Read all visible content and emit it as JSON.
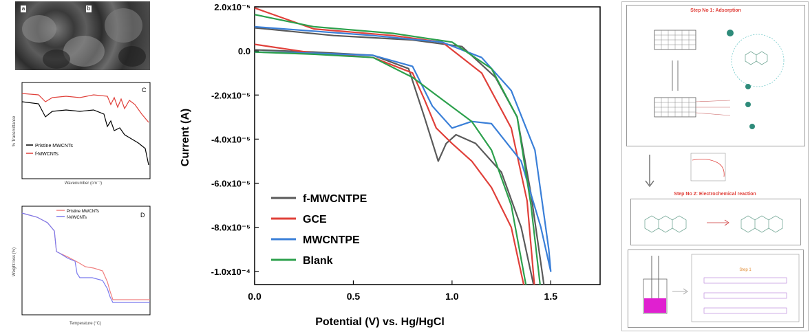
{
  "chart_data": [
    {
      "type": "line",
      "panel": "main",
      "xlabel": "Potential (V) vs. Hg/HgCl",
      "ylabel": "Current (A)",
      "xlim": [
        0.0,
        1.75
      ],
      "ylim": [
        -0.000106,
        2e-05
      ],
      "x_ticks": [
        "0.0",
        "0.5",
        "1.0",
        "1.5"
      ],
      "x_tick_values": [
        0.0,
        0.5,
        1.0,
        1.5
      ],
      "y_ticks": [
        "2.0x10⁻⁵",
        "0.0",
        "-2.0x10⁻⁵",
        "-4.0x10⁻⁵",
        "-6.0x10⁻⁵",
        "-8.0x10⁻⁵",
        "-1.0x10⁻⁴"
      ],
      "y_tick_values": [
        2e-05,
        0.0,
        -2e-05,
        -4e-05,
        -6e-05,
        -8e-05,
        -0.0001
      ],
      "legend_placement": "bottom-left",
      "series": [
        {
          "name": "f-MWCNTPE",
          "color": "#5a5a5a",
          "forward": [
            [
              0.0,
              5e-07
            ],
            [
              0.3,
              -5e-07
            ],
            [
              0.6,
              -2e-06
            ],
            [
              0.78,
              -8e-06
            ],
            [
              0.86,
              -3e-05
            ],
            [
              0.93,
              -5e-05
            ],
            [
              0.97,
              -4.2e-05
            ],
            [
              1.02,
              -3.8e-05
            ],
            [
              1.12,
              -4.2e-05
            ],
            [
              1.25,
              -5.5e-05
            ],
            [
              1.35,
              -8e-05
            ],
            [
              1.42,
              -0.000109
            ]
          ],
          "reverse": [
            [
              1.47,
              -0.000109
            ],
            [
              1.4,
              -6.5e-05
            ],
            [
              1.33,
              -3e-05
            ],
            [
              1.22,
              -1.2e-05
            ],
            [
              1.05,
              2e-06
            ],
            [
              0.8,
              5e-06
            ],
            [
              0.4,
              7e-06
            ],
            [
              0.0,
              1.05e-05
            ]
          ]
        },
        {
          "name": "GCE",
          "color": "#e0403a",
          "forward": [
            [
              0.0,
              3e-06
            ],
            [
              0.3,
              -1e-06
            ],
            [
              0.6,
              -3e-06
            ],
            [
              0.8,
              -1e-05
            ],
            [
              0.86,
              -2.2e-05
            ],
            [
              0.92,
              -3.5e-05
            ],
            [
              1.0,
              -4.2e-05
            ],
            [
              1.1,
              -5e-05
            ],
            [
              1.2,
              -6.2e-05
            ],
            [
              1.3,
              -8e-05
            ],
            [
              1.37,
              -0.000109
            ]
          ],
          "reverse": [
            [
              1.42,
              -0.000109
            ],
            [
              1.38,
              -6.8e-05
            ],
            [
              1.3,
              -3.5e-05
            ],
            [
              1.15,
              -1e-05
            ],
            [
              0.95,
              4e-06
            ],
            [
              0.7,
              7e-06
            ],
            [
              0.3,
              1e-05
            ],
            [
              0.0,
              1.95e-05
            ]
          ]
        },
        {
          "name": "MWCNTPE",
          "color": "#3a7fd8",
          "forward": [
            [
              0.0,
              -5e-07
            ],
            [
              0.3,
              -1e-06
            ],
            [
              0.6,
              -2e-06
            ],
            [
              0.8,
              -7e-06
            ],
            [
              0.9,
              -2.5e-05
            ],
            [
              1.0,
              -3.5e-05
            ],
            [
              1.1,
              -3.2e-05
            ],
            [
              1.2,
              -3.3e-05
            ],
            [
              1.35,
              -5e-05
            ],
            [
              1.45,
              -8e-05
            ],
            [
              1.5,
              -0.0001
            ]
          ],
          "reverse": [
            [
              1.49,
              -9e-05
            ],
            [
              1.42,
              -4.5e-05
            ],
            [
              1.3,
              -1.8e-05
            ],
            [
              1.15,
              -3e-06
            ],
            [
              0.95,
              4e-06
            ],
            [
              0.6,
              7e-06
            ],
            [
              0.3,
              9e-06
            ],
            [
              0.0,
              1.1e-05
            ]
          ]
        },
        {
          "name": "Blank",
          "color": "#2ca04c",
          "forward": [
            [
              0.0,
              -5e-07
            ],
            [
              0.3,
              -1.5e-06
            ],
            [
              0.6,
              -3e-06
            ],
            [
              0.8,
              -1.2e-05
            ],
            [
              0.95,
              -2.2e-05
            ],
            [
              1.1,
              -3.2e-05
            ],
            [
              1.2,
              -4.5e-05
            ],
            [
              1.3,
              -7e-05
            ],
            [
              1.38,
              -0.000109
            ]
          ],
          "reverse": [
            [
              1.45,
              -0.000109
            ],
            [
              1.4,
              -7e-05
            ],
            [
              1.33,
              -3e-05
            ],
            [
              1.2,
              -8e-06
            ],
            [
              1.0,
              4e-06
            ],
            [
              0.7,
              8e-06
            ],
            [
              0.3,
              1.1e-05
            ],
            [
              0.0,
              1.65e-05
            ]
          ]
        }
      ]
    },
    {
      "type": "line",
      "panel": "C",
      "xlabel": "Wavenumber (cm⁻¹)",
      "ylabel": "% Transmittance",
      "legend_placement": "bottom-left",
      "series": [
        {
          "name": "Pristine MWCNTs",
          "color": "#000000"
        },
        {
          "name": "f-MWCNTs",
          "color": "#e0403a"
        }
      ]
    },
    {
      "type": "line",
      "panel": "D",
      "xlabel": "Temperature (°C)",
      "ylabel": "Weight loss (%)",
      "legend_placement": "top-right",
      "series": [
        {
          "name": "Pristine MWCNTs",
          "color": "#f08080"
        },
        {
          "name": "f-MWCNTs",
          "color": "#7a7aee"
        }
      ]
    }
  ],
  "sem": {
    "label_a": "a",
    "label_b": "b"
  },
  "scheme": {
    "label_a": "a",
    "label_b": "b",
    "step1_title": "Step No 1: Adsorption",
    "step2_title": "Step No 2: Electrochemical reaction",
    "step_label": "Step 1"
  }
}
